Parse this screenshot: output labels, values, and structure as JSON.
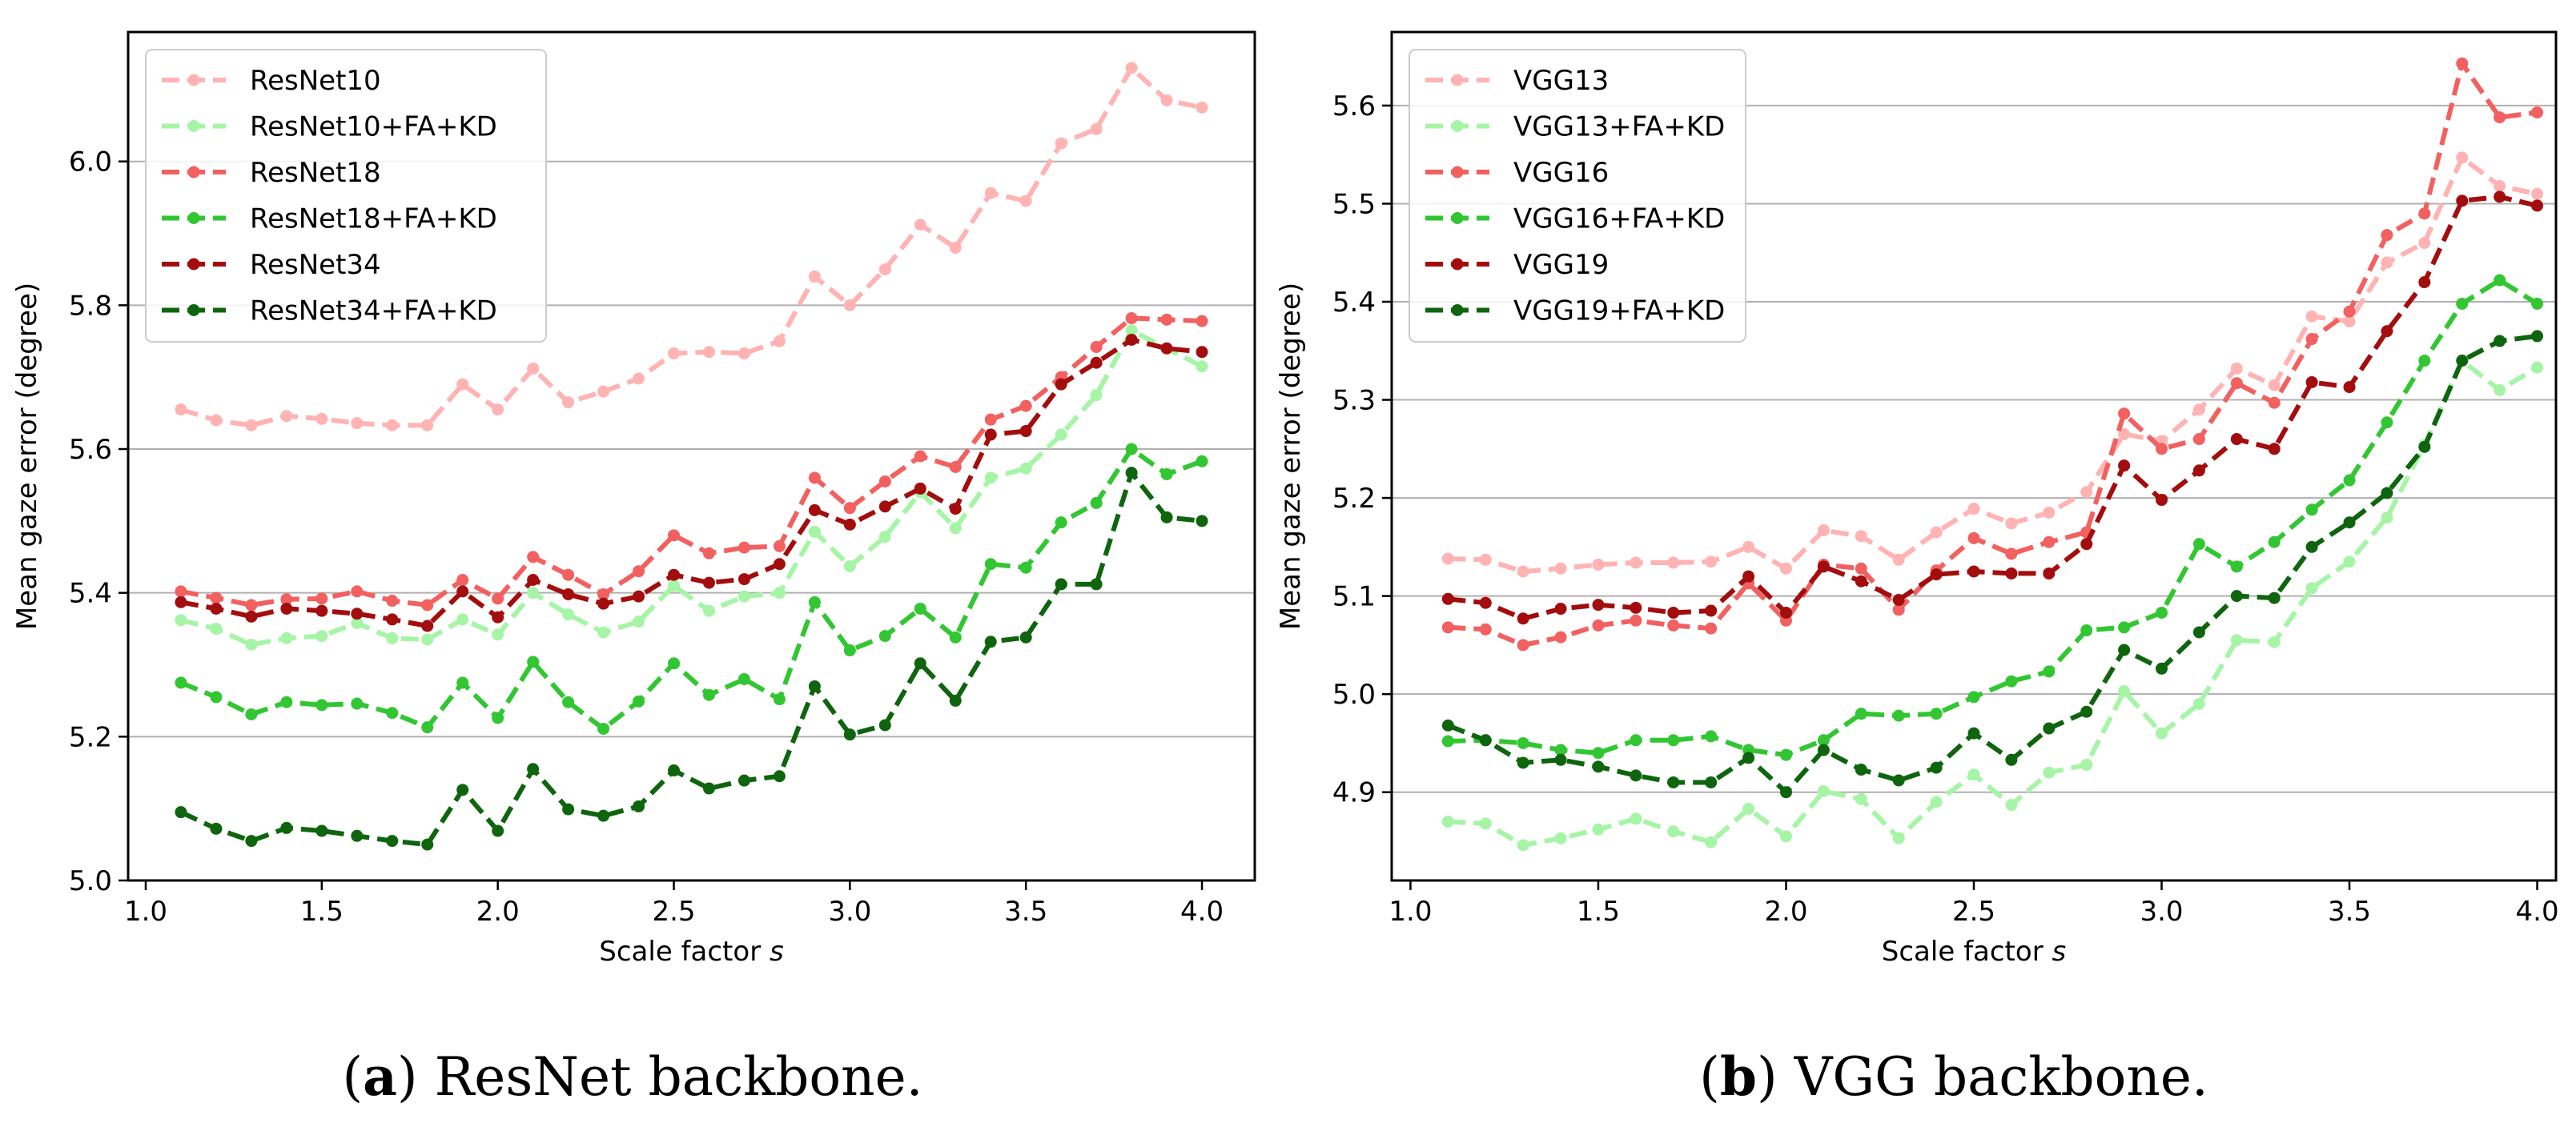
{
  "chart_data": [
    {
      "type": "line",
      "caption": {
        "letter": "a",
        "text": "ResNet backbone."
      },
      "xlabel": "Scale factor",
      "xlabel_var": "s",
      "ylabel": "Mean gaze error (degree)",
      "xlim": [
        0.95,
        4.15
      ],
      "ylim": [
        5.0,
        6.18
      ],
      "xticks": [
        1.0,
        1.5,
        2.0,
        2.5,
        3.0,
        3.5,
        4.0
      ],
      "xtick_labels": [
        "1.0",
        "1.5",
        "2.0",
        "2.5",
        "3.0",
        "3.5",
        "4.0"
      ],
      "yticks": [
        5.0,
        5.2,
        5.4,
        5.6,
        5.8,
        6.0
      ],
      "ytick_labels": [
        "5.0",
        "5.2",
        "5.4",
        "5.6",
        "5.8",
        "6.0"
      ],
      "grid": "horizontal",
      "legend": "top-left",
      "x": [
        1.1,
        1.2,
        1.3,
        1.4,
        1.5,
        1.6,
        1.7,
        1.8,
        1.9,
        2.0,
        2.1,
        2.2,
        2.3,
        2.4,
        2.5,
        2.6,
        2.7,
        2.8,
        2.9,
        3.0,
        3.1,
        3.2,
        3.3,
        3.4,
        3.5,
        3.6,
        3.7,
        3.8,
        3.9,
        4.0
      ],
      "series": [
        {
          "name": "ResNet10",
          "color": "#ffb3b3",
          "values": [
            5.655,
            5.64,
            5.633,
            5.646,
            5.642,
            5.636,
            5.633,
            5.633,
            5.69,
            5.655,
            5.712,
            5.665,
            5.68,
            5.698,
            5.733,
            5.735,
            5.733,
            5.75,
            5.84,
            5.8,
            5.85,
            5.912,
            5.88,
            5.956,
            5.945,
            6.025,
            6.045,
            6.13,
            6.085,
            6.075
          ]
        },
        {
          "name": "ResNet10+FA+KD",
          "color": "#a6f5a6",
          "values": [
            5.362,
            5.35,
            5.328,
            5.337,
            5.34,
            5.358,
            5.337,
            5.335,
            5.363,
            5.342,
            5.4,
            5.37,
            5.345,
            5.36,
            5.41,
            5.375,
            5.395,
            5.4,
            5.485,
            5.437,
            5.478,
            5.54,
            5.49,
            5.56,
            5.573,
            5.62,
            5.675,
            5.765,
            5.74,
            5.715
          ]
        },
        {
          "name": "ResNet18",
          "color": "#f26060",
          "values": [
            5.402,
            5.393,
            5.383,
            5.391,
            5.392,
            5.402,
            5.389,
            5.383,
            5.418,
            5.392,
            5.45,
            5.425,
            5.398,
            5.43,
            5.48,
            5.455,
            5.463,
            5.465,
            5.56,
            5.518,
            5.555,
            5.59,
            5.575,
            5.641,
            5.66,
            5.7,
            5.742,
            5.782,
            5.78,
            5.778
          ]
        },
        {
          "name": "ResNet18+FA+KD",
          "color": "#32c632",
          "values": [
            5.275,
            5.255,
            5.231,
            5.248,
            5.244,
            5.246,
            5.233,
            5.213,
            5.275,
            5.226,
            5.304,
            5.248,
            5.211,
            5.249,
            5.302,
            5.258,
            5.28,
            5.252,
            5.387,
            5.32,
            5.34,
            5.378,
            5.338,
            5.44,
            5.435,
            5.498,
            5.525,
            5.6,
            5.565,
            5.583
          ]
        },
        {
          "name": "ResNet34",
          "color": "#a30d0d",
          "values": [
            5.387,
            5.378,
            5.367,
            5.378,
            5.375,
            5.371,
            5.363,
            5.354,
            5.402,
            5.366,
            5.418,
            5.398,
            5.385,
            5.395,
            5.425,
            5.414,
            5.419,
            5.44,
            5.515,
            5.495,
            5.52,
            5.545,
            5.517,
            5.62,
            5.625,
            5.69,
            5.72,
            5.752,
            5.74,
            5.735
          ]
        },
        {
          "name": "ResNet34+FA+KD",
          "color": "#0e650e",
          "values": [
            5.095,
            5.072,
            5.055,
            5.073,
            5.069,
            5.062,
            5.055,
            5.05,
            5.126,
            5.069,
            5.155,
            5.099,
            5.09,
            5.103,
            5.153,
            5.128,
            5.139,
            5.145,
            5.27,
            5.203,
            5.216,
            5.302,
            5.25,
            5.332,
            5.338,
            5.412,
            5.412,
            5.567,
            5.505,
            5.5
          ]
        }
      ]
    },
    {
      "type": "line",
      "caption": {
        "letter": "b",
        "text": "VGG backbone."
      },
      "xlabel": "Scale factor",
      "xlabel_var": "s",
      "ylabel": "Mean gaze error (degree)",
      "xlim": [
        0.95,
        4.05
      ],
      "ylim": [
        4.81,
        5.675
      ],
      "xticks": [
        1.0,
        1.5,
        2.0,
        2.5,
        3.0,
        3.5,
        4.0
      ],
      "xtick_labels": [
        "1.0",
        "1.5",
        "2.0",
        "2.5",
        "3.0",
        "3.5",
        "4.0"
      ],
      "yticks": [
        4.9,
        5.0,
        5.1,
        5.2,
        5.3,
        5.4,
        5.5,
        5.6
      ],
      "ytick_labels": [
        "4.9",
        "5.0",
        "5.1",
        "5.2",
        "5.3",
        "5.4",
        "5.5",
        "5.6"
      ],
      "grid": "horizontal",
      "legend": "top-left",
      "x": [
        1.1,
        1.2,
        1.3,
        1.4,
        1.5,
        1.6,
        1.7,
        1.8,
        1.9,
        2.0,
        2.1,
        2.2,
        2.3,
        2.4,
        2.5,
        2.6,
        2.7,
        2.8,
        2.9,
        3.0,
        3.1,
        3.2,
        3.3,
        3.4,
        3.5,
        3.6,
        3.7,
        3.8,
        3.9,
        4.0
      ],
      "series": [
        {
          "name": "VGG13",
          "color": "#ffb3b3",
          "values": [
            5.138,
            5.137,
            5.125,
            5.128,
            5.132,
            5.134,
            5.134,
            5.135,
            5.15,
            5.128,
            5.167,
            5.161,
            5.137,
            5.165,
            5.189,
            5.174,
            5.185,
            5.206,
            5.265,
            5.258,
            5.29,
            5.332,
            5.315,
            5.385,
            5.38,
            5.44,
            5.46,
            5.547,
            5.518,
            5.51
          ]
        },
        {
          "name": "VGG13+FA+KD",
          "color": "#a6f5a6",
          "values": [
            4.87,
            4.868,
            4.846,
            4.853,
            4.862,
            4.873,
            4.86,
            4.849,
            4.883,
            4.855,
            4.901,
            4.893,
            4.853,
            4.89,
            4.918,
            4.887,
            4.92,
            4.928,
            5.003,
            4.96,
            4.99,
            5.055,
            5.053,
            5.108,
            5.135,
            5.18,
            5.254,
            5.34,
            5.31,
            5.333
          ]
        },
        {
          "name": "VGG16",
          "color": "#f26060",
          "values": [
            5.068,
            5.066,
            5.05,
            5.058,
            5.07,
            5.075,
            5.07,
            5.067,
            5.113,
            5.075,
            5.132,
            5.128,
            5.086,
            5.126,
            5.159,
            5.143,
            5.155,
            5.165,
            5.286,
            5.25,
            5.26,
            5.317,
            5.297,
            5.362,
            5.39,
            5.468,
            5.49,
            5.643,
            5.588,
            5.593
          ]
        },
        {
          "name": "VGG16+FA+KD",
          "color": "#32c632",
          "values": [
            4.952,
            4.953,
            4.95,
            4.943,
            4.94,
            4.953,
            4.953,
            4.957,
            4.943,
            4.938,
            4.953,
            4.98,
            4.978,
            4.98,
            4.997,
            5.013,
            5.023,
            5.065,
            5.068,
            5.083,
            5.153,
            5.13,
            5.155,
            5.188,
            5.218,
            5.277,
            5.34,
            5.398,
            5.422,
            5.398
          ]
        },
        {
          "name": "VGG19",
          "color": "#a30d0d",
          "values": [
            5.097,
            5.093,
            5.077,
            5.087,
            5.091,
            5.088,
            5.083,
            5.085,
            5.12,
            5.083,
            5.13,
            5.115,
            5.096,
            5.122,
            5.125,
            5.123,
            5.123,
            5.153,
            5.233,
            5.198,
            5.228,
            5.26,
            5.25,
            5.318,
            5.313,
            5.37,
            5.42,
            5.503,
            5.507,
            5.498
          ]
        },
        {
          "name": "VGG19+FA+KD",
          "color": "#0e650e",
          "values": [
            4.968,
            4.953,
            4.93,
            4.933,
            4.926,
            4.917,
            4.91,
            4.91,
            4.935,
            4.9,
            4.943,
            4.923,
            4.912,
            4.925,
            4.96,
            4.933,
            4.965,
            4.982,
            5.045,
            5.026,
            5.063,
            5.1,
            5.098,
            5.15,
            5.175,
            5.205,
            5.252,
            5.34,
            5.36,
            5.365
          ]
        }
      ]
    }
  ]
}
